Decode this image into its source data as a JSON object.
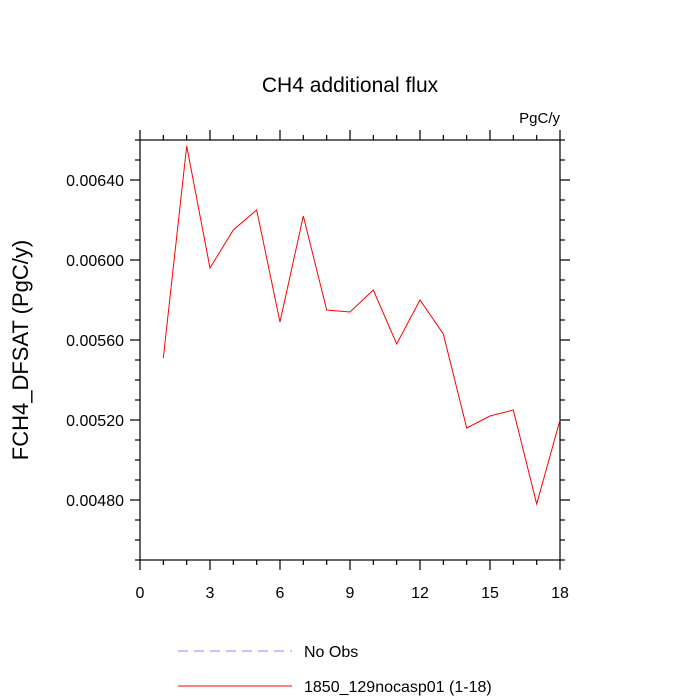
{
  "chart_data": {
    "type": "line",
    "title": "CH4 additional flux",
    "units": "PgC/y",
    "ylabel": "FCH4_DFSAT  (PgC/y)",
    "xlabel": "",
    "xlim": [
      0,
      18
    ],
    "ylim": [
      0.0045,
      0.0066
    ],
    "x_ticks": [
      0,
      3,
      6,
      9,
      12,
      15,
      18
    ],
    "x_tick_labels": [
      "0",
      "3",
      "6",
      "9",
      "12",
      "15",
      "18"
    ],
    "y_ticks": [
      0.0048,
      0.0052,
      0.0056,
      0.006,
      0.0064
    ],
    "y_tick_labels": [
      "0.00480",
      "0.00520",
      "0.00560",
      "0.00600",
      "0.00640"
    ],
    "grid": false,
    "legend_position": "bottom",
    "series": [
      {
        "name": "No Obs",
        "color": "#8c8cff",
        "dash": "dashed",
        "x": [],
        "values": []
      },
      {
        "name": "1850_129nocasp01 (1-18)",
        "color": "#ff0000",
        "dash": "solid",
        "x": [
          1,
          2,
          3,
          4,
          5,
          6,
          7,
          8,
          9,
          10,
          11,
          12,
          13,
          14,
          15,
          16,
          17,
          18
        ],
        "values": [
          0.00551,
          0.00657,
          0.00596,
          0.00615,
          0.00625,
          0.00569,
          0.00622,
          0.00575,
          0.00574,
          0.00585,
          0.00558,
          0.0058,
          0.00563,
          0.00516,
          0.00522,
          0.00525,
          0.00478,
          0.0052
        ]
      }
    ]
  }
}
